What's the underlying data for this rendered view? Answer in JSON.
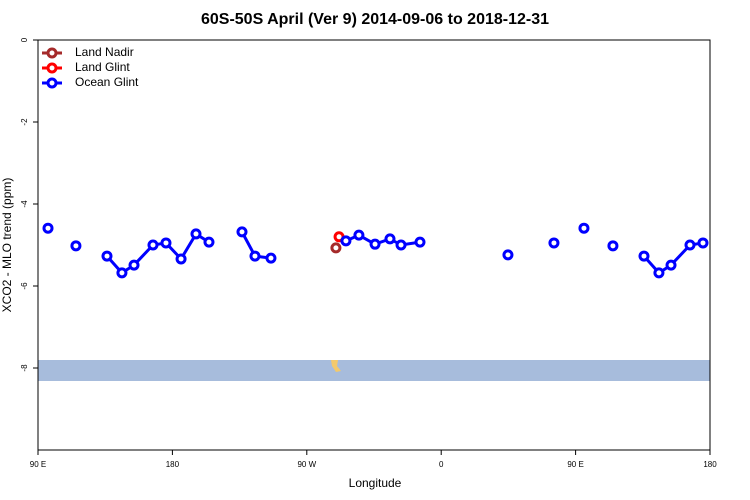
{
  "chart_data": {
    "type": "line",
    "title": "60S-50S April (Ver 9)   2014-09-06 to 2018-12-31",
    "x_label": "Longitude",
    "y_label": "XCO2 - MLO trend (ppm)",
    "xlim": [
      90,
      540
    ],
    "xticks": [
      {
        "value": 90,
        "label": "90 E"
      },
      180,
      {
        "value": 270,
        "label": "90 W"
      },
      {
        "value": 360,
        "label": "0"
      },
      {
        "value": 450,
        "label": "90 E"
      },
      {
        "value": 540,
        "label": "180"
      }
    ],
    "ylim": [
      -10,
      0
    ],
    "yticks": [
      0,
      -2,
      -4,
      -6,
      -8
    ],
    "legend": "top-left",
    "series": [
      {
        "name": "Land Nadir",
        "color": "#a52a2a",
        "x": [
          289.5
        ],
        "values": [
          -5.07
        ]
      },
      {
        "name": "Land Glint",
        "color": "#ff0000",
        "x": [
          291.6
        ],
        "values": [
          -4.8
        ]
      },
      {
        "name": "Ocean Glint",
        "color": "#0000ff",
        "x": [
          96.7,
          106,
          115.4,
          126,
          136.2,
          146.2,
          154.3,
          167.0,
          175.7,
          185.8,
          195.8,
          204.5,
          216,
          226.6,
          235.3,
          246.0,
          270,
          296.2,
          304.9,
          315.7,
          325.7,
          333.1,
          345.8,
          375,
          404.7,
          420,
          435.5,
          445,
          455.6,
          465,
          475.0,
          485,
          495.8,
          505.8,
          513.9,
          526.6,
          535.3
        ],
        "values": [
          -4.59,
          null,
          -5.02,
          null,
          -5.27,
          -5.68,
          -5.49,
          -5.0,
          -4.95,
          -5.34,
          -4.73,
          -4.93,
          null,
          -4.68,
          -5.27,
          -5.32,
          null,
          -4.9,
          -4.76,
          -4.98,
          -4.85,
          -5.0,
          -4.93,
          null,
          -5.24,
          null,
          -4.95,
          null,
          -4.59,
          null,
          -5.02,
          null,
          -5.27,
          -5.68,
          -5.49,
          -5.0,
          -4.95
        ]
      }
    ]
  }
}
